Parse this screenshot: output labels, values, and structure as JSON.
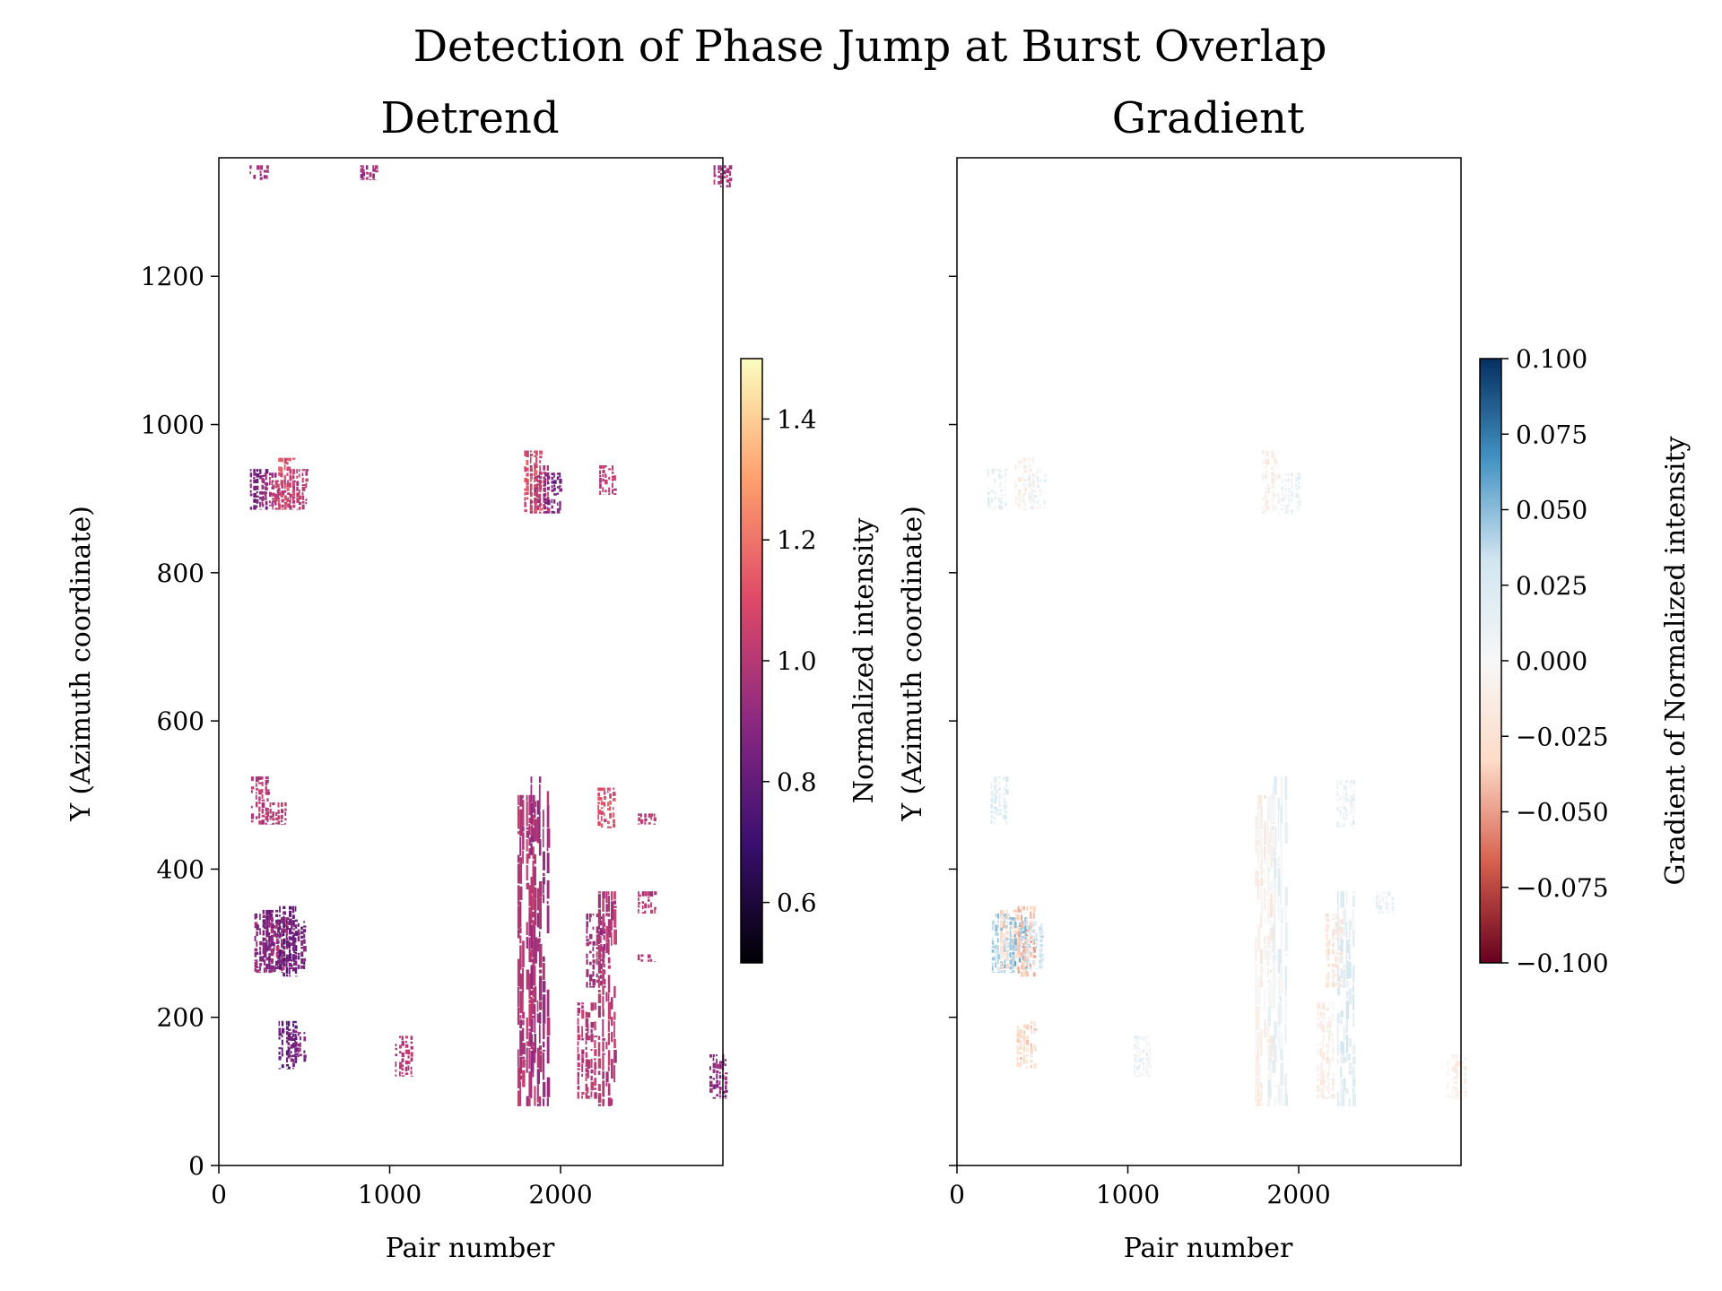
{
  "figure": {
    "suptitle": "Detection of Phase Jump at Burst Overlap"
  },
  "chart_data": [
    {
      "type": "heatmap",
      "title": "Detrend",
      "xlabel": "Pair number",
      "ylabel": "Y (Azimuth coordinate)",
      "xlim": [
        0,
        2950
      ],
      "ylim": [
        0,
        1360
      ],
      "xticks": [
        0,
        1000,
        2000
      ],
      "yticks": [
        0,
        200,
        400,
        600,
        800,
        1000,
        1200
      ],
      "colorbar": {
        "label": "Normalized intensity",
        "range": [
          0.5,
          1.5
        ],
        "ticks": [
          0.6,
          0.8,
          1.0,
          1.2,
          1.4
        ],
        "tick_labels": [
          "0.6",
          "0.8",
          "1.0",
          "1.2",
          "1.4"
        ],
        "colormap": "magma",
        "stops": [
          "#000004",
          "#3b0f70",
          "#8c2981",
          "#de4968",
          "#fe9f6d",
          "#fcfdbf"
        ]
      },
      "regions": [
        {
          "x": 230,
          "y0": 1330,
          "y1": 1350,
          "value": 0.95
        },
        {
          "x": 870,
          "y0": 1330,
          "y1": 1350,
          "value": 0.95
        },
        {
          "x": 2945,
          "y0": 1320,
          "y1": 1350,
          "value": 0.95
        },
        {
          "x": 230,
          "y0": 885,
          "y1": 940,
          "value": 0.85
        },
        {
          "x": 300,
          "y0": 890,
          "y1": 935,
          "value": 0.95
        },
        {
          "x": 360,
          "y0": 885,
          "y1": 925,
          "value": 1.0
        },
        {
          "x": 390,
          "y0": 885,
          "y1": 955,
          "value": 1.1
        },
        {
          "x": 460,
          "y0": 885,
          "y1": 940,
          "value": 1.0
        },
        {
          "x": 1830,
          "y0": 880,
          "y1": 965,
          "value": 1.1
        },
        {
          "x": 1870,
          "y0": 880,
          "y1": 945,
          "value": 1.0
        },
        {
          "x": 1950,
          "y0": 880,
          "y1": 935,
          "value": 0.85
        },
        {
          "x": 2270,
          "y0": 905,
          "y1": 945,
          "value": 1.0
        },
        {
          "x": 240,
          "y0": 460,
          "y1": 525,
          "value": 1.0
        },
        {
          "x": 340,
          "y0": 460,
          "y1": 490,
          "value": 1.0
        },
        {
          "x": 1790,
          "y0": 80,
          "y1": 500,
          "value": 1.0
        },
        {
          "x": 1870,
          "y0": 80,
          "y1": 525,
          "value": 0.95
        },
        {
          "x": 2260,
          "y0": 455,
          "y1": 510,
          "value": 1.1
        },
        {
          "x": 2500,
          "y0": 460,
          "y1": 475,
          "value": 1.0
        },
        {
          "x": 2500,
          "y0": 340,
          "y1": 370,
          "value": 1.0
        },
        {
          "x": 2500,
          "y0": 275,
          "y1": 285,
          "value": 1.0
        },
        {
          "x": 250,
          "y0": 260,
          "y1": 340,
          "value": 0.9
        },
        {
          "x": 300,
          "y0": 265,
          "y1": 345,
          "value": 0.85
        },
        {
          "x": 350,
          "y0": 260,
          "y1": 335,
          "value": 0.95
        },
        {
          "x": 400,
          "y0": 255,
          "y1": 350,
          "value": 0.8
        },
        {
          "x": 450,
          "y0": 265,
          "y1": 330,
          "value": 0.85
        },
        {
          "x": 2200,
          "y0": 240,
          "y1": 340,
          "value": 0.95
        },
        {
          "x": 2270,
          "y0": 80,
          "y1": 370,
          "value": 1.0
        },
        {
          "x": 2150,
          "y0": 90,
          "y1": 220,
          "value": 1.0
        },
        {
          "x": 400,
          "y0": 130,
          "y1": 195,
          "value": 0.8
        },
        {
          "x": 450,
          "y0": 140,
          "y1": 180,
          "value": 0.85
        },
        {
          "x": 1080,
          "y0": 120,
          "y1": 175,
          "value": 1.0
        },
        {
          "x": 2920,
          "y0": 90,
          "y1": 150,
          "value": 0.9
        }
      ]
    },
    {
      "type": "heatmap",
      "title": "Gradient",
      "xlabel": "Pair number",
      "ylabel": "Y (Azimuth coordinate)",
      "xlim": [
        0,
        2950
      ],
      "ylim": [
        0,
        1360
      ],
      "xticks": [
        0,
        1000,
        2000
      ],
      "colorbar": {
        "label": "Gradient of Normalized intensity",
        "range": [
          -0.1,
          0.1
        ],
        "ticks": [
          -0.1,
          -0.075,
          -0.05,
          -0.025,
          0.0,
          0.025,
          0.05,
          0.075,
          0.1
        ],
        "tick_labels": [
          "−0.100",
          "−0.075",
          "−0.050",
          "−0.025",
          "0.000",
          "0.025",
          "0.050",
          "0.075",
          "0.100"
        ],
        "colormap": "RdBu",
        "stops": [
          "#67001f",
          "#d6604d",
          "#fddbc7",
          "#f7f7f7",
          "#d1e5f0",
          "#4393c3",
          "#053061"
        ]
      },
      "regions": [
        {
          "x": 230,
          "y0": 885,
          "y1": 940,
          "value": 0.01
        },
        {
          "x": 390,
          "y0": 885,
          "y1": 955,
          "value": -0.01
        },
        {
          "x": 460,
          "y0": 885,
          "y1": 940,
          "value": 0.01
        },
        {
          "x": 1830,
          "y0": 880,
          "y1": 965,
          "value": -0.01
        },
        {
          "x": 1950,
          "y0": 880,
          "y1": 935,
          "value": 0.01
        },
        {
          "x": 240,
          "y0": 460,
          "y1": 525,
          "value": 0.02
        },
        {
          "x": 1790,
          "y0": 80,
          "y1": 500,
          "value": -0.01
        },
        {
          "x": 1870,
          "y0": 80,
          "y1": 525,
          "value": 0.01
        },
        {
          "x": 2270,
          "y0": 455,
          "y1": 520,
          "value": 0.01
        },
        {
          "x": 250,
          "y0": 260,
          "y1": 340,
          "value": 0.04
        },
        {
          "x": 300,
          "y0": 265,
          "y1": 345,
          "value": -0.03
        },
        {
          "x": 350,
          "y0": 260,
          "y1": 335,
          "value": 0.05
        },
        {
          "x": 400,
          "y0": 255,
          "y1": 350,
          "value": -0.04
        },
        {
          "x": 450,
          "y0": 265,
          "y1": 330,
          "value": 0.03
        },
        {
          "x": 2200,
          "y0": 240,
          "y1": 340,
          "value": -0.02
        },
        {
          "x": 2270,
          "y0": 80,
          "y1": 370,
          "value": 0.02
        },
        {
          "x": 2150,
          "y0": 90,
          "y1": 220,
          "value": -0.01
        },
        {
          "x": 400,
          "y0": 130,
          "y1": 195,
          "value": -0.03
        },
        {
          "x": 1080,
          "y0": 120,
          "y1": 175,
          "value": 0.01
        },
        {
          "x": 2500,
          "y0": 340,
          "y1": 370,
          "value": 0.01
        },
        {
          "x": 2920,
          "y0": 90,
          "y1": 150,
          "value": -0.01
        }
      ]
    }
  ]
}
